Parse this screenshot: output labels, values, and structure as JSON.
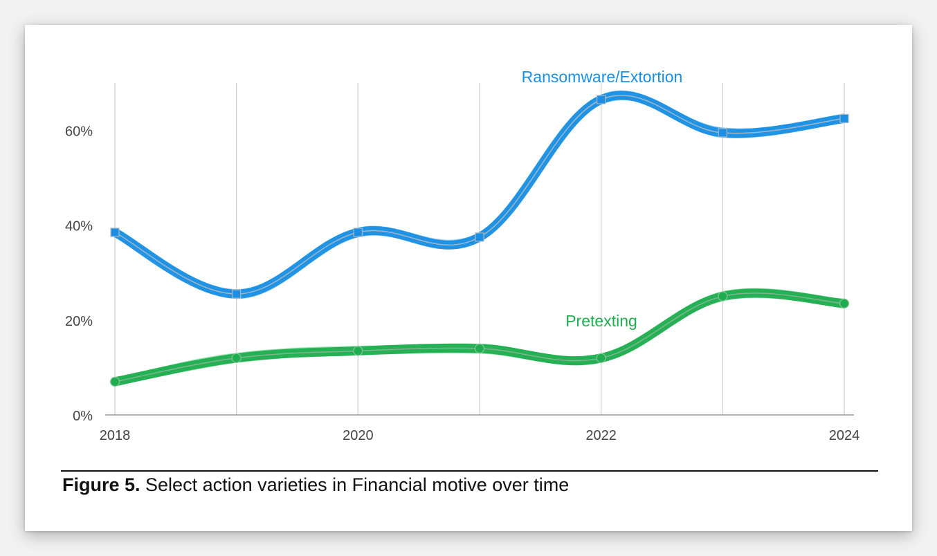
{
  "chart_data": {
    "type": "line",
    "x": [
      2018,
      2019,
      2020,
      2021,
      2022,
      2023,
      2024
    ],
    "xticks": [
      "2018",
      "2020",
      "2022",
      "2024"
    ],
    "yticks": [
      "0%",
      "20%",
      "40%",
      "60%"
    ],
    "ylim": [
      0,
      70
    ],
    "grid": "vertical",
    "legend": "inline labels",
    "series": [
      {
        "name": "Ransomware/Extortion",
        "values": [
          38.5,
          25.5,
          38.5,
          37.5,
          66.5,
          59.5,
          62.5
        ],
        "color": "#1a8fe3",
        "marker": "square"
      },
      {
        "name": "Pretexting",
        "values": [
          7.0,
          12.0,
          13.5,
          14.0,
          12.0,
          25.0,
          23.5
        ],
        "color": "#1fad4f",
        "marker": "circle"
      }
    ]
  },
  "caption": {
    "number": "Figure 5.",
    "text": " Select action varieties in Financial motive over time"
  }
}
